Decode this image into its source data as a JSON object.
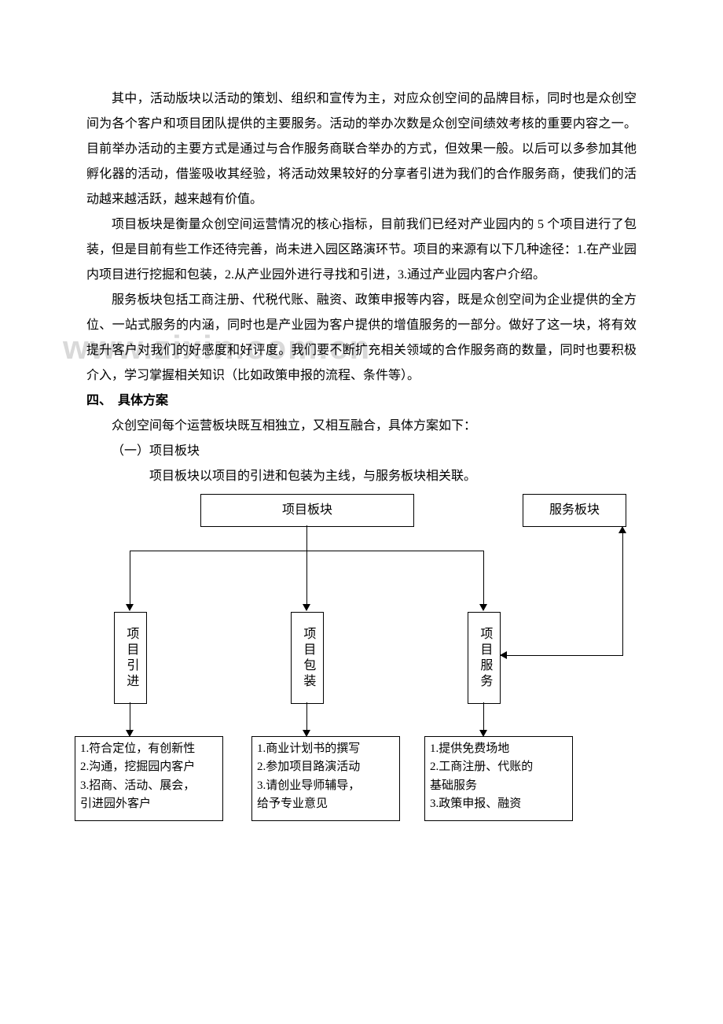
{
  "watermark": "www.zixin.com.cn",
  "paragraphs": {
    "p1": "其中，活动版块以活动的策划、组织和宣传为主，对应众创空间的品牌目标，同时也是众创空间为各个客户和项目团队提供的主要服务。活动的举办次数是众创空间绩效考核的重要内容之一。目前举办活动的主要方式是通过与合作服务商联合举办的方式，但效果一般。以后可以多参加其他孵化器的活动，借鉴吸收其经验，将活动效果较好的分享者引进为我们的合作服务商，使我们的活动越来越活跃，越来越有价值。",
    "p2": "项目板块是衡量众创空间运营情况的核心指标，目前我们已经对产业园内的 5 个项目进行了包装，但是目前有些工作还待完善，尚未进入园区路演环节。项目的来源有以下几种途径：1.在产业园内项目进行挖掘和包装，2.从产业园外进行寻找和引进，3.通过产业园内客户介绍。",
    "p3": "服务板块包括工商注册、代税代账、融资、政策申报等内容，既是众创空间为企业提供的全方位、一站式服务的内涵，同时也是产业园为客户提供的增值服务的一部分。做好了这一块，将有效提升客户对我们的好感度和好评度。我们要不断扩充相关领域的合作服务商的数量，同时也要积极介入，学习掌握相关知识（比如政策申报的流程、条件等）。"
  },
  "section4": {
    "heading": "四、　具体方案",
    "intro": "众创空间每个运营板块既互相独立，又相互融合，具体方案如下：",
    "sub_heading": "（一）项目板块",
    "sub_intro": "项目板块以项目的引进和包装为主线，与服务板块相关联。"
  },
  "diagram": {
    "top": {
      "project": "项目板块",
      "service": "服务板块"
    },
    "mid": {
      "a": "项目引进",
      "b": "项目包装",
      "c": "项目服务"
    },
    "detail": {
      "a": "1.符合定位，有创新性\n2.沟通，挖掘园内客户\n3.招商、活动、展会，\n引进园外客户",
      "b": "1.商业计划书的撰写\n2.参加项目路演活动\n3.请创业导师辅导，\n给予专业意见",
      "c": "1.提供免费场地\n2.工商注册、代账的\n基础服务\n3.政策申报、融资"
    },
    "colors": {
      "line": "#000000",
      "bg": "#ffffff",
      "text": "#000000"
    }
  }
}
